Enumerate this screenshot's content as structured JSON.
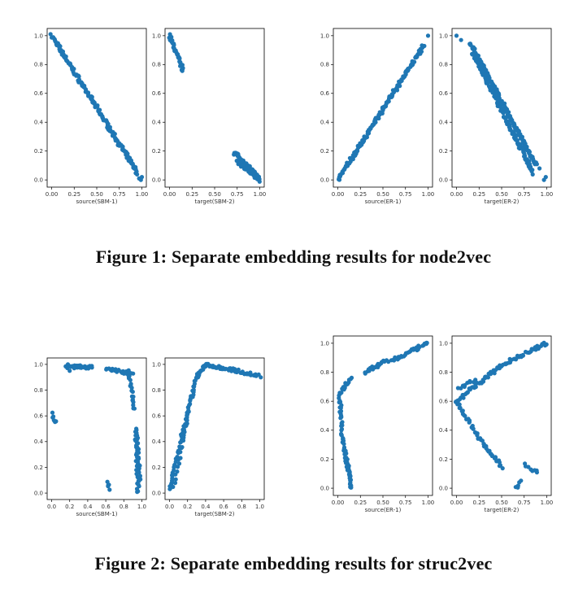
{
  "figure1": {
    "caption": "Figure 1: Separate embedding results for node2vec"
  },
  "figure2": {
    "caption": "Figure 2: Separate embedding results for struc2vec"
  },
  "colors": {
    "point": "#1f77b4",
    "axis": "#000000",
    "tick_text": "#333333"
  },
  "chart_data": [
    {
      "id": "f1-sbm1",
      "type": "scatter",
      "xlabel": "source(SBM-1)",
      "xticks": [
        "0.00",
        "0.25",
        "0.50",
        "0.75",
        "1.00"
      ],
      "yticks": [
        "0.0",
        "0.2",
        "0.4",
        "0.6",
        "0.8",
        "1.0"
      ],
      "xlim": [
        -0.05,
        1.05
      ],
      "ylim": [
        -0.05,
        1.05
      ],
      "series": [
        {
          "segments": [
            [
              0.0,
              1.0,
              0.95,
              0.05,
              160
            ]
          ],
          "points": [
            [
              0.97,
              0.01
            ],
            [
              0.99,
              0.0
            ],
            [
              1.0,
              0.02
            ]
          ]
        }
      ]
    },
    {
      "id": "f1-sbm2",
      "type": "scatter",
      "xlabel": "target(SBM-2)",
      "xticks": [
        "0.00",
        "0.25",
        "0.50",
        "0.75",
        "1.00"
      ],
      "yticks": [
        "0.0",
        "0.2",
        "0.4",
        "0.6",
        "0.8",
        "1.0"
      ],
      "xlim": [
        -0.05,
        1.05
      ],
      "ylim": [
        -0.05,
        1.05
      ],
      "series": [
        {
          "segments": [
            [
              0.0,
              1.0,
              0.15,
              0.76,
              35
            ],
            [
              0.72,
              0.19,
              0.98,
              0.02,
              55
            ],
            [
              0.75,
              0.13,
              1.0,
              0.0,
              40
            ]
          ],
          "points": []
        }
      ]
    },
    {
      "id": "f1-er1",
      "type": "scatter",
      "xlabel": "source(ER-1)",
      "xticks": [
        "0.00",
        "0.25",
        "0.50",
        "0.75",
        "1.00"
      ],
      "yticks": [
        "0.0",
        "0.2",
        "0.4",
        "0.6",
        "0.8",
        "1.0"
      ],
      "xlim": [
        -0.05,
        1.05
      ],
      "ylim": [
        -0.05,
        1.05
      ],
      "series": [
        {
          "segments": [
            [
              0.0,
              0.0,
              0.95,
              0.93,
              170
            ]
          ],
          "points": [
            [
              1.0,
              1.0
            ]
          ]
        }
      ]
    },
    {
      "id": "f1-er2",
      "type": "scatter",
      "xlabel": "target(ER-2)",
      "xticks": [
        "0.00",
        "0.25",
        "0.50",
        "0.75",
        "1.00"
      ],
      "yticks": [
        "0.0",
        "0.2",
        "0.4",
        "0.6",
        "0.8",
        "1.0"
      ],
      "xlim": [
        -0.05,
        1.05
      ],
      "ylim": [
        -0.05,
        1.05
      ],
      "series": [
        {
          "segments": [
            [
              0.15,
              0.95,
              0.88,
              0.1,
              180
            ],
            [
              0.18,
              0.88,
              0.85,
              0.05,
              120
            ]
          ],
          "points": [
            [
              0.0,
              1.0
            ],
            [
              0.05,
              0.97
            ],
            [
              0.97,
              0.0
            ],
            [
              0.99,
              0.02
            ],
            [
              0.92,
              0.08
            ]
          ]
        }
      ]
    },
    {
      "id": "f2-sbm1",
      "type": "scatter",
      "xlabel": "source(SBM-1)",
      "xticks": [
        "0.0",
        "0.2",
        "0.4",
        "0.6",
        "0.8",
        "1.0"
      ],
      "yticks": [
        "0.0",
        "0.2",
        "0.4",
        "0.6",
        "0.8",
        "1.0"
      ],
      "xlim": [
        -0.05,
        1.05
      ],
      "ylim": [
        -0.05,
        1.05
      ],
      "series": [
        {
          "segments": [
            [
              0.15,
              0.98,
              0.45,
              0.98,
              25
            ],
            [
              0.6,
              0.97,
              0.9,
              0.92,
              20
            ],
            [
              0.85,
              0.95,
              0.92,
              0.65,
              20
            ],
            [
              0.93,
              0.5,
              0.96,
              0.0,
              35
            ],
            [
              0.94,
              0.45,
              0.98,
              0.1,
              25
            ],
            [
              0.62,
              0.08,
              0.64,
              0.03,
              5
            ],
            [
              0.0,
              0.62,
              0.05,
              0.55,
              6
            ]
          ],
          "points": [
            [
              0.18,
              1.0
            ],
            [
              0.3,
              0.99
            ],
            [
              0.2,
              0.95
            ],
            [
              0.25,
              0.97
            ]
          ]
        }
      ]
    },
    {
      "id": "f2-sbm2",
      "type": "scatter",
      "xlabel": "target(SBM-2)",
      "xticks": [
        "0.0",
        "0.2",
        "0.4",
        "0.6",
        "0.8",
        "1.0"
      ],
      "yticks": [
        "0.0",
        "0.2",
        "0.4",
        "0.6",
        "0.8",
        "1.0"
      ],
      "xlim": [
        -0.05,
        1.05
      ],
      "ylim": [
        -0.05,
        1.05
      ],
      "series": [
        {
          "segments": [
            [
              0.0,
              0.02,
              0.12,
              0.4,
              25
            ],
            [
              0.12,
              0.4,
              0.3,
              0.9,
              40
            ],
            [
              0.3,
              0.9,
              0.4,
              1.0,
              20
            ],
            [
              0.4,
              1.0,
              0.75,
              0.95,
              30
            ],
            [
              0.75,
              0.95,
              1.0,
              0.91,
              20
            ],
            [
              0.05,
              0.05,
              0.2,
              0.6,
              20
            ]
          ],
          "points": []
        }
      ]
    },
    {
      "id": "f2-er1",
      "type": "scatter",
      "xlabel": "source(ER-1)",
      "xticks": [
        "0.00",
        "0.25",
        "0.50",
        "0.75",
        "1.00"
      ],
      "yticks": [
        "0.0",
        "0.2",
        "0.4",
        "0.6",
        "0.8",
        "1.0"
      ],
      "xlim": [
        -0.05,
        1.05
      ],
      "ylim": [
        -0.05,
        1.05
      ],
      "series": [
        {
          "segments": [
            [
              0.15,
              0.0,
              0.05,
              0.35,
              30
            ],
            [
              0.05,
              0.35,
              0.02,
              0.65,
              25
            ],
            [
              0.02,
              0.65,
              0.15,
              0.76,
              15
            ],
            [
              0.3,
              0.8,
              0.55,
              0.88,
              20
            ],
            [
              0.6,
              0.88,
              1.0,
              1.0,
              30
            ],
            [
              0.1,
              0.2,
              0.15,
              0.0,
              15
            ]
          ],
          "points": []
        }
      ]
    },
    {
      "id": "f2-er2",
      "type": "scatter",
      "xlabel": "target(ER-2)",
      "xticks": [
        "0.00",
        "0.25",
        "0.50",
        "0.75",
        "1.00"
      ],
      "yticks": [
        "0.0",
        "0.2",
        "0.4",
        "0.6",
        "0.8",
        "1.0"
      ],
      "xlim": [
        -0.05,
        1.05
      ],
      "ylim": [
        -0.05,
        1.05
      ],
      "series": [
        {
          "segments": [
            [
              0.0,
              0.6,
              0.5,
              0.85,
              40
            ],
            [
              0.5,
              0.85,
              1.0,
              1.0,
              35
            ],
            [
              0.0,
              0.6,
              0.3,
              0.3,
              30
            ],
            [
              0.3,
              0.3,
              0.5,
              0.15,
              20
            ],
            [
              0.65,
              0.0,
              0.72,
              0.05,
              5
            ],
            [
              0.75,
              0.16,
              0.9,
              0.11,
              8
            ],
            [
              0.02,
              0.68,
              0.2,
              0.75,
              10
            ]
          ],
          "points": []
        }
      ]
    }
  ]
}
